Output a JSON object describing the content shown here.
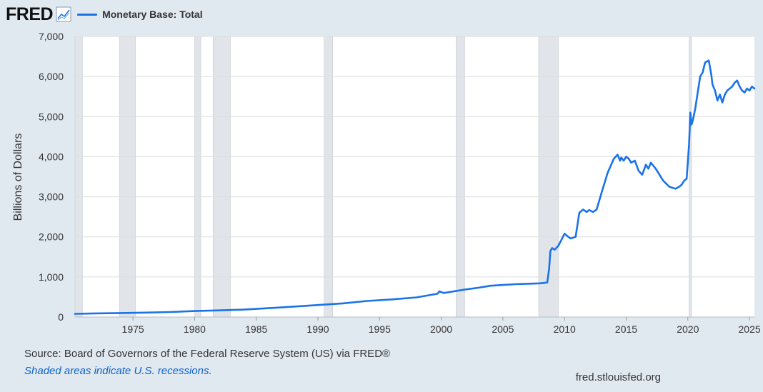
{
  "header": {
    "logo_text": "FRED",
    "series_label": "Monetary Base: Total"
  },
  "footer": {
    "source": "Source: Board of Governors of the Federal Reserve System (US) via FRED®",
    "note": "Shaded areas indicate U.S. recessions.",
    "site": "fred.stlouisfed.org"
  },
  "colors": {
    "line": "#1a73e8",
    "background": "#e1e9f0",
    "plot_background": "#ffffff",
    "recession": "#e1e5ea",
    "grid": "#dddddd"
  },
  "chart_data": {
    "type": "line",
    "title": "Monetary Base: Total",
    "xlabel": "",
    "ylabel": "Billions of Dollars",
    "xlim": [
      1970.3,
      2025.4
    ],
    "ylim": [
      0,
      7000
    ],
    "yticks": [
      0,
      1000,
      2000,
      3000,
      4000,
      5000,
      6000,
      7000
    ],
    "ytick_labels": [
      "0",
      "1,000",
      "2,000",
      "3,000",
      "4,000",
      "5,000",
      "6,000",
      "7,000"
    ],
    "xticks": [
      1975,
      1980,
      1985,
      1990,
      1995,
      2000,
      2005,
      2010,
      2015,
      2020,
      2025
    ],
    "xtick_labels": [
      "1975",
      "1980",
      "1985",
      "1990",
      "1995",
      "2000",
      "2005",
      "2010",
      "2015",
      "2020",
      "2025"
    ],
    "recessions": [
      [
        1969.9,
        1970.9
      ],
      [
        1973.9,
        1975.2
      ],
      [
        1980.0,
        1980.5
      ],
      [
        1981.5,
        1982.9
      ],
      [
        1990.5,
        1991.2
      ],
      [
        2001.2,
        2001.9
      ],
      [
        2007.9,
        2009.5
      ],
      [
        2020.1,
        2020.3
      ]
    ],
    "series": [
      {
        "name": "Monetary Base: Total",
        "x": [
          1970.3,
          1972,
          1974,
          1976,
          1978,
          1980,
          1982,
          1984,
          1986,
          1988,
          1990,
          1992,
          1994,
          1996,
          1998,
          1999.7,
          1999.85,
          2000.2,
          2001,
          2002,
          2003,
          2004,
          2005,
          2006,
          2007,
          2008,
          2008.6,
          2008.75,
          2008.85,
          2009.0,
          2009.2,
          2009.5,
          2009.8,
          2010.0,
          2010.3,
          2010.5,
          2010.9,
          2011.2,
          2011.5,
          2011.8,
          2012.0,
          2012.3,
          2012.6,
          2013.0,
          2013.5,
          2014.0,
          2014.3,
          2014.5,
          2014.6,
          2014.8,
          2015.0,
          2015.2,
          2015.4,
          2015.7,
          2016.0,
          2016.3,
          2016.6,
          2016.8,
          2017.0,
          2017.4,
          2017.7,
          2018.0,
          2018.5,
          2019.0,
          2019.3,
          2019.5,
          2019.7,
          2019.9,
          2020.1,
          2020.2,
          2020.3,
          2020.4,
          2020.6,
          2020.8,
          2021.0,
          2021.2,
          2021.4,
          2021.7,
          2021.9,
          2022.0,
          2022.2,
          2022.4,
          2022.6,
          2022.8,
          2023.0,
          2023.2,
          2023.4,
          2023.6,
          2023.8,
          2024.0,
          2024.2,
          2024.4,
          2024.6,
          2024.8,
          2025.0,
          2025.2,
          2025.4
        ],
        "values": [
          80,
          90,
          100,
          110,
          125,
          150,
          165,
          185,
          220,
          260,
          300,
          340,
          400,
          440,
          490,
          580,
          640,
          600,
          640,
          690,
          730,
          780,
          800,
          820,
          830,
          840,
          860,
          1200,
          1650,
          1720,
          1680,
          1780,
          1960,
          2080,
          2000,
          1960,
          2000,
          2600,
          2680,
          2620,
          2670,
          2620,
          2680,
          3100,
          3600,
          3950,
          4050,
          3900,
          3980,
          3900,
          4000,
          3950,
          3850,
          3900,
          3650,
          3550,
          3800,
          3700,
          3850,
          3700,
          3550,
          3400,
          3250,
          3200,
          3250,
          3300,
          3400,
          3450,
          4300,
          5100,
          4800,
          4900,
          5200,
          5600,
          6000,
          6100,
          6350,
          6400,
          6050,
          5800,
          5650,
          5400,
          5550,
          5350,
          5550,
          5650,
          5700,
          5750,
          5850,
          5900,
          5750,
          5650,
          5600,
          5700,
          5650,
          5750,
          5700
        ]
      }
    ]
  }
}
